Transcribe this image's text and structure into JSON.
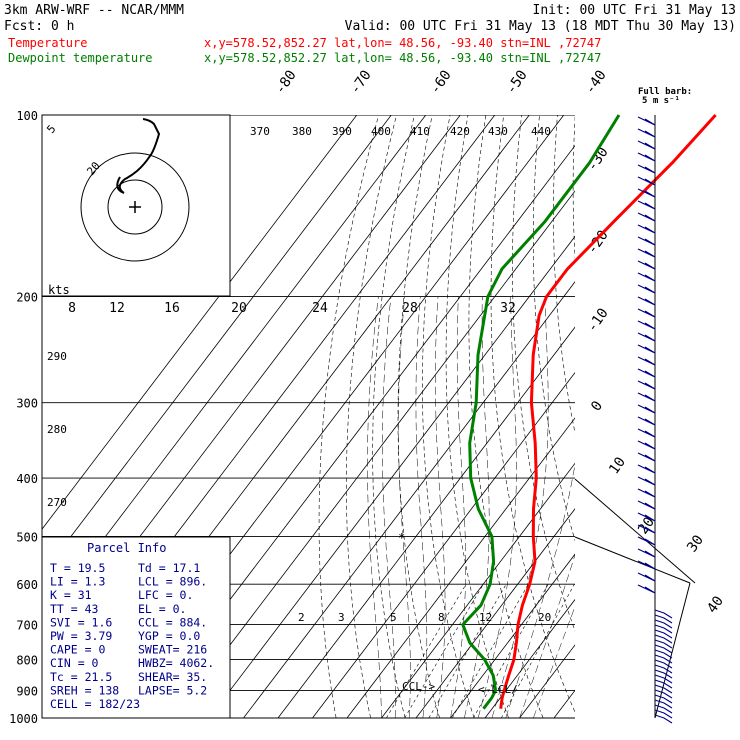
{
  "header": {
    "model": "3km ARW-WRF -- NCAR/MMM",
    "init": "Init: 00 UTC Fri 31 May 13",
    "fcst": "Fcst:     0 h",
    "valid": "Valid: 00 UTC Fri 31 May 13 (18 MDT Thu 30 May 13)"
  },
  "series_info": [
    {
      "name": "Temperature",
      "loc": "x,y=578.52,852.27   lat,lon= 48.56, -93.40   stn=INL ,72747",
      "color": "#ff0000"
    },
    {
      "name": "Dewpoint temperature",
      "loc": "x,y=578.52,852.27   lat,lon= 48.56, -93.40   stn=INL ,72747",
      "color": "#008000"
    }
  ],
  "barb_key": {
    "line1": "Full barb:",
    "line2": "5 m s⁻¹"
  },
  "parcel_info": {
    "title": "Parcel Info",
    "rows": [
      [
        "T  =    19.5",
        "Td =  17.1"
      ],
      [
        "LI =     1.3",
        "LCL =  896."
      ],
      [
        "K  =      31",
        "LFC =    0."
      ],
      [
        "TT =      43",
        "EL  =    0."
      ],
      [
        "SVI =    1.6",
        "CCL =  884."
      ],
      [
        "PW =    3.79",
        "YGP =   0.0"
      ],
      [
        "CAPE =     0",
        "SWEAT=  216"
      ],
      [
        "CIN  =     0",
        "HWBZ= 4062."
      ],
      [
        "Tc =    21.5",
        "SHEAR=  35."
      ],
      [
        "SREH =   138",
        "LAPSE=   5.2"
      ],
      [
        "CELL = 182/23",
        ""
      ]
    ]
  },
  "hodograph": {
    "units": "kts",
    "ring_labels": [
      "8",
      "12",
      "16",
      "20",
      "24",
      "28",
      "32"
    ],
    "inset_labels": [
      "5",
      "20"
    ]
  },
  "annotations": {
    "lcl": "<-LCL/",
    "ccl": "CCL->",
    "star": "*"
  },
  "chart_data": {
    "type": "line",
    "title": "",
    "ylabel": "",
    "y_scale": "log (pressure, hPa)",
    "ylim": [
      1000,
      100
    ],
    "pressure_ticks": [
      100,
      200,
      300,
      400,
      500,
      600,
      700,
      800,
      900,
      1000
    ],
    "isotherm_labels": [
      "-80",
      "-70",
      "-60",
      "-50",
      "-40",
      "-30",
      "-20",
      "-10",
      "0",
      "10",
      "20",
      "30",
      "40"
    ],
    "theta_labels": [
      "370",
      "380",
      "390",
      "400",
      "410",
      "420",
      "430",
      "440",
      "290",
      "280",
      "270"
    ],
    "mixing_ratio_labels": [
      "2",
      "3",
      "5",
      "8",
      "12",
      "20"
    ],
    "series": [
      {
        "name": "Temperature",
        "color": "#ff0000",
        "points": [
          [
            965,
            22.5
          ],
          [
            925,
            20.5
          ],
          [
            900,
            19.5
          ],
          [
            850,
            17.5
          ],
          [
            800,
            15.5
          ],
          [
            750,
            12.5
          ],
          [
            700,
            9
          ],
          [
            650,
            6
          ],
          [
            600,
            3.5
          ],
          [
            550,
            0
          ],
          [
            500,
            -6
          ],
          [
            450,
            -12
          ],
          [
            400,
            -18
          ],
          [
            350,
            -26
          ],
          [
            300,
            -36
          ],
          [
            250,
            -46
          ],
          [
            215,
            -53
          ],
          [
            200,
            -55
          ],
          [
            180,
            -55
          ],
          [
            150,
            -52
          ],
          [
            120,
            -48
          ],
          [
            100,
            -46
          ]
        ]
      },
      {
        "name": "Dewpoint temperature",
        "color": "#008000",
        "points": [
          [
            965,
            17.5
          ],
          [
            925,
            17.5
          ],
          [
            900,
            17
          ],
          [
            850,
            13
          ],
          [
            800,
            7
          ],
          [
            750,
            -1
          ],
          [
            700,
            -7
          ],
          [
            650,
            -6
          ],
          [
            600,
            -8
          ],
          [
            550,
            -12
          ],
          [
            500,
            -18
          ],
          [
            450,
            -28
          ],
          [
            400,
            -37
          ],
          [
            350,
            -45
          ],
          [
            300,
            -52
          ],
          [
            250,
            -62
          ],
          [
            200,
            -72
          ],
          [
            180,
            -74
          ],
          [
            150,
            -72
          ],
          [
            120,
            -72
          ],
          [
            100,
            -74
          ]
        ]
      }
    ]
  }
}
